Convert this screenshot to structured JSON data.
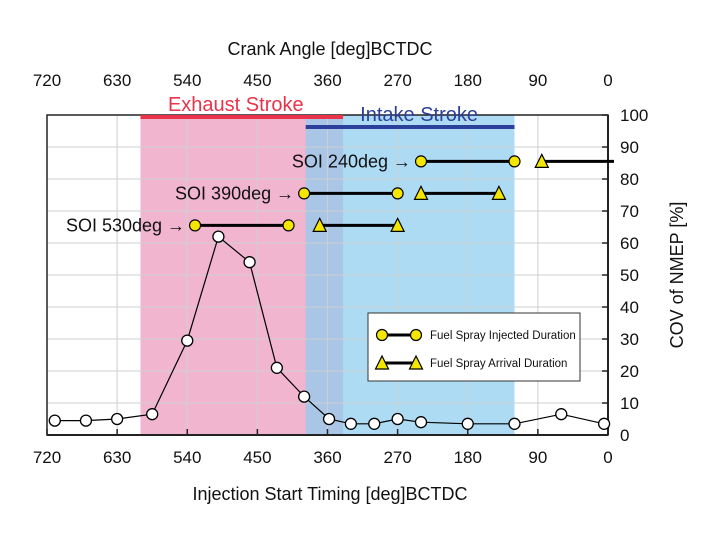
{
  "chart_data": {
    "type": "scatter",
    "title": "",
    "xlabel_top": "Crank Angle [deg]BCTDC",
    "xlabel_bottom": "Injection Start Timing [deg]BCTDC",
    "ylabel": "COV of NMEP [%]",
    "xlim": [
      720,
      0
    ],
    "ylim": [
      0,
      100
    ],
    "x_ticks": [
      "720",
      "630",
      "540",
      "450",
      "360",
      "270",
      "180",
      "90",
      "0"
    ],
    "x_tick_values": [
      720,
      630,
      540,
      450,
      360,
      270,
      180,
      90,
      0
    ],
    "y_ticks": [
      "0",
      "10",
      "20",
      "30",
      "40",
      "50",
      "60",
      "70",
      "80",
      "90",
      "100"
    ],
    "y_tick_values": [
      0,
      10,
      20,
      30,
      40,
      50,
      60,
      70,
      80,
      90,
      100
    ],
    "grid": true,
    "regions": [
      {
        "name": "Exhaust Stroke",
        "x_start": 600,
        "x_end": 340,
        "color": "#f0a8c8",
        "label_color": "#e8334a"
      },
      {
        "name": "Intake Stroke",
        "x_start": 388,
        "x_end": 120,
        "color": "#8ecdf0",
        "label_color": "#2c3f9a"
      }
    ],
    "series": [
      {
        "name": "COV of NMEP",
        "marker": "open-circle",
        "x": [
          710,
          670,
          630,
          585,
          540,
          500,
          460,
          425,
          390,
          358,
          330,
          300,
          270,
          240,
          180,
          120,
          60,
          5
        ],
        "y": [
          4.5,
          4.5,
          5,
          6.5,
          29.5,
          62,
          54,
          21,
          12,
          5,
          3.5,
          3.5,
          5,
          4,
          3.5,
          3.5,
          6.5,
          3.5
        ]
      }
    ],
    "durations": [
      {
        "label": "SOI 240deg →",
        "injected": [
          240,
          120
        ],
        "arrival": [
          85,
          0
        ],
        "y": 85.5
      },
      {
        "label": "SOI 390deg →",
        "injected": [
          390,
          270
        ],
        "arrival": [
          240,
          140
        ],
        "y": 75.5
      },
      {
        "label": "SOI 530deg →",
        "injected": [
          530,
          410
        ],
        "arrival": [
          370,
          270
        ],
        "y": 65.5
      }
    ],
    "legend": [
      {
        "label": "Fuel Spray Injected Duration",
        "marker": "yellow-circle"
      },
      {
        "label": "Fuel Spray Arrival Duration",
        "marker": "yellow-triangle"
      }
    ],
    "legend_position": "lower-right",
    "colors": {
      "marker_fill": "#f4e600",
      "line": "#000000",
      "grid": "#cfcfcf",
      "axis": "#222222"
    }
  }
}
